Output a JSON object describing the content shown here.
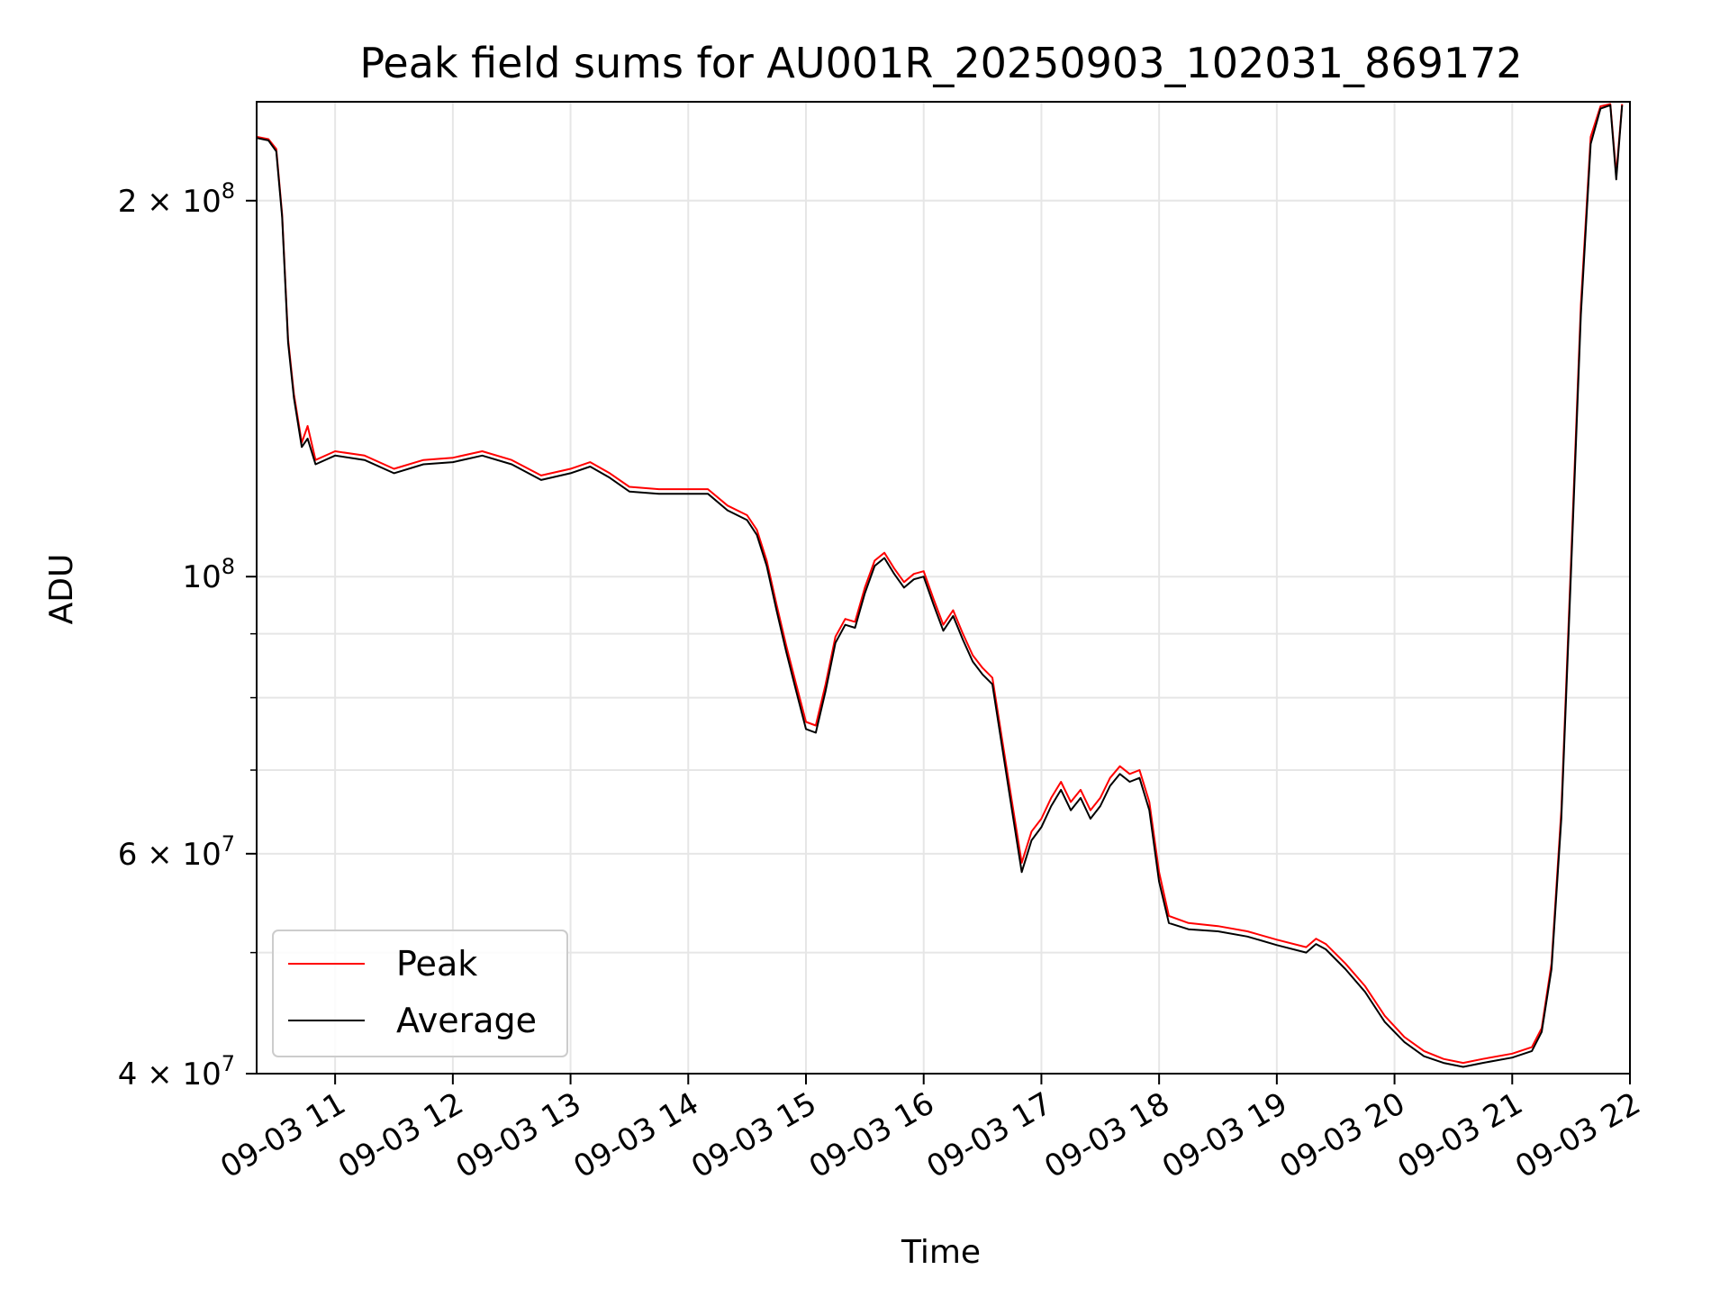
{
  "chart_data": {
    "type": "line",
    "title": "Peak field sums for AU001R_20250903_102031_869172",
    "xlabel": "Time",
    "ylabel": "ADU",
    "y_scale": "log",
    "grid": true,
    "legend_position": "lower-left",
    "xlim": [
      "2025-09-03 10:20",
      "2025-09-03 22:00"
    ],
    "ylim": [
      40000000,
      240000000
    ],
    "x_ticks": [
      {
        "value": "2025-09-03 11:00",
        "label": "09-03 11"
      },
      {
        "value": "2025-09-03 12:00",
        "label": "09-03 12"
      },
      {
        "value": "2025-09-03 13:00",
        "label": "09-03 13"
      },
      {
        "value": "2025-09-03 14:00",
        "label": "09-03 14"
      },
      {
        "value": "2025-09-03 15:00",
        "label": "09-03 15"
      },
      {
        "value": "2025-09-03 16:00",
        "label": "09-03 16"
      },
      {
        "value": "2025-09-03 17:00",
        "label": "09-03 17"
      },
      {
        "value": "2025-09-03 18:00",
        "label": "09-03 18"
      },
      {
        "value": "2025-09-03 19:00",
        "label": "09-03 19"
      },
      {
        "value": "2025-09-03 20:00",
        "label": "09-03 20"
      },
      {
        "value": "2025-09-03 21:00",
        "label": "09-03 21"
      },
      {
        "value": "2025-09-03 22:00",
        "label": "09-03 22"
      }
    ],
    "y_major_ticks": [
      {
        "value": 40000000,
        "mantissa": "4",
        "exponent": "7"
      },
      {
        "value": 60000000,
        "mantissa": "6",
        "exponent": "7"
      },
      {
        "value": 100000000,
        "mantissa": "",
        "exponent": "8"
      },
      {
        "value": 200000000,
        "mantissa": "2",
        "exponent": "8"
      }
    ],
    "y_minor_ticks": [
      50000000,
      70000000,
      80000000,
      90000000
    ],
    "series": [
      {
        "name": "Peak",
        "color": "#ff0000",
        "points": [
          [
            "2025-09-03 10:20",
            225000000
          ],
          [
            "2025-09-03 10:26",
            224000000
          ],
          [
            "2025-09-03 10:30",
            220000000
          ],
          [
            "2025-09-03 10:33",
            195000000
          ],
          [
            "2025-09-03 10:36",
            155000000
          ],
          [
            "2025-09-03 10:39",
            140000000
          ],
          [
            "2025-09-03 10:43",
            128000000
          ],
          [
            "2025-09-03 10:46",
            132000000
          ],
          [
            "2025-09-03 10:50",
            124000000
          ],
          [
            "2025-09-03 11:00",
            126000000
          ],
          [
            "2025-09-03 11:15",
            125000000
          ],
          [
            "2025-09-03 11:30",
            122000000
          ],
          [
            "2025-09-03 11:45",
            124000000
          ],
          [
            "2025-09-03 12:00",
            124500000
          ],
          [
            "2025-09-03 12:15",
            126000000
          ],
          [
            "2025-09-03 12:30",
            124000000
          ],
          [
            "2025-09-03 12:45",
            120500000
          ],
          [
            "2025-09-03 13:00",
            122000000
          ],
          [
            "2025-09-03 13:10",
            123500000
          ],
          [
            "2025-09-03 13:20",
            121000000
          ],
          [
            "2025-09-03 13:30",
            118000000
          ],
          [
            "2025-09-03 13:45",
            117500000
          ],
          [
            "2025-09-03 14:00",
            117500000
          ],
          [
            "2025-09-03 14:10",
            117500000
          ],
          [
            "2025-09-03 14:20",
            114000000
          ],
          [
            "2025-09-03 14:30",
            112000000
          ],
          [
            "2025-09-03 14:35",
            109000000
          ],
          [
            "2025-09-03 14:40",
            103000000
          ],
          [
            "2025-09-03 14:45",
            95000000
          ],
          [
            "2025-09-03 14:50",
            88000000
          ],
          [
            "2025-09-03 14:55",
            82000000
          ],
          [
            "2025-09-03 15:00",
            76500000
          ],
          [
            "2025-09-03 15:05",
            76000000
          ],
          [
            "2025-09-03 15:10",
            82000000
          ],
          [
            "2025-09-03 15:15",
            89500000
          ],
          [
            "2025-09-03 15:20",
            92500000
          ],
          [
            "2025-09-03 15:25",
            92000000
          ],
          [
            "2025-09-03 15:30",
            98000000
          ],
          [
            "2025-09-03 15:35",
            103000000
          ],
          [
            "2025-09-03 15:40",
            104500000
          ],
          [
            "2025-09-03 15:45",
            101500000
          ],
          [
            "2025-09-03 15:50",
            99000000
          ],
          [
            "2025-09-03 15:55",
            100500000
          ],
          [
            "2025-09-03 16:00",
            101000000
          ],
          [
            "2025-09-03 16:05",
            96000000
          ],
          [
            "2025-09-03 16:10",
            91500000
          ],
          [
            "2025-09-03 16:15",
            94000000
          ],
          [
            "2025-09-03 16:20",
            90000000
          ],
          [
            "2025-09-03 16:25",
            86500000
          ],
          [
            "2025-09-03 16:30",
            84500000
          ],
          [
            "2025-09-03 16:35",
            83000000
          ],
          [
            "2025-09-03 16:40",
            74000000
          ],
          [
            "2025-09-03 16:45",
            66000000
          ],
          [
            "2025-09-03 16:50",
            59000000
          ],
          [
            "2025-09-03 16:55",
            62500000
          ],
          [
            "2025-09-03 17:00",
            64000000
          ],
          [
            "2025-09-03 17:05",
            66500000
          ],
          [
            "2025-09-03 17:10",
            68500000
          ],
          [
            "2025-09-03 17:15",
            66000000
          ],
          [
            "2025-09-03 17:20",
            67500000
          ],
          [
            "2025-09-03 17:25",
            65000000
          ],
          [
            "2025-09-03 17:30",
            66500000
          ],
          [
            "2025-09-03 17:35",
            69000000
          ],
          [
            "2025-09-03 17:40",
            70500000
          ],
          [
            "2025-09-03 17:45",
            69500000
          ],
          [
            "2025-09-03 17:50",
            70000000
          ],
          [
            "2025-09-03 17:55",
            66000000
          ],
          [
            "2025-09-03 18:00",
            58000000
          ],
          [
            "2025-09-03 18:05",
            53500000
          ],
          [
            "2025-09-03 18:15",
            52800000
          ],
          [
            "2025-09-03 18:30",
            52500000
          ],
          [
            "2025-09-03 18:45",
            52000000
          ],
          [
            "2025-09-03 19:00",
            51200000
          ],
          [
            "2025-09-03 19:15",
            50500000
          ],
          [
            "2025-09-03 19:20",
            51300000
          ],
          [
            "2025-09-03 19:25",
            50800000
          ],
          [
            "2025-09-03 19:35",
            49000000
          ],
          [
            "2025-09-03 19:45",
            47000000
          ],
          [
            "2025-09-03 19:55",
            44500000
          ],
          [
            "2025-09-03 20:05",
            42800000
          ],
          [
            "2025-09-03 20:15",
            41700000
          ],
          [
            "2025-09-03 20:25",
            41100000
          ],
          [
            "2025-09-03 20:35",
            40800000
          ],
          [
            "2025-09-03 20:45",
            41100000
          ],
          [
            "2025-09-03 21:00",
            41500000
          ],
          [
            "2025-09-03 21:10",
            42000000
          ],
          [
            "2025-09-03 21:15",
            43500000
          ],
          [
            "2025-09-03 21:20",
            49000000
          ],
          [
            "2025-09-03 21:25",
            65000000
          ],
          [
            "2025-09-03 21:30",
            103000000
          ],
          [
            "2025-09-03 21:35",
            165000000
          ],
          [
            "2025-09-03 21:40",
            225000000
          ],
          [
            "2025-09-03 21:45",
            238000000
          ],
          [
            "2025-09-03 21:50",
            239000000
          ],
          [
            "2025-09-03 21:53",
            210000000
          ],
          [
            "2025-09-03 21:56",
            239000000
          ]
        ]
      },
      {
        "name": "Average",
        "color": "#000000",
        "points": [
          [
            "2025-09-03 10:20",
            224500000
          ],
          [
            "2025-09-03 10:26",
            223500000
          ],
          [
            "2025-09-03 10:30",
            219000000
          ],
          [
            "2025-09-03 10:33",
            194000000
          ],
          [
            "2025-09-03 10:36",
            154000000
          ],
          [
            "2025-09-03 10:39",
            139000000
          ],
          [
            "2025-09-03 10:43",
            127000000
          ],
          [
            "2025-09-03 10:46",
            129000000
          ],
          [
            "2025-09-03 10:50",
            123000000
          ],
          [
            "2025-09-03 11:00",
            125000000
          ],
          [
            "2025-09-03 11:15",
            124000000
          ],
          [
            "2025-09-03 11:30",
            121000000
          ],
          [
            "2025-09-03 11:45",
            123000000
          ],
          [
            "2025-09-03 12:00",
            123500000
          ],
          [
            "2025-09-03 12:15",
            125000000
          ],
          [
            "2025-09-03 12:30",
            123000000
          ],
          [
            "2025-09-03 12:45",
            119500000
          ],
          [
            "2025-09-03 13:00",
            121000000
          ],
          [
            "2025-09-03 13:10",
            122500000
          ],
          [
            "2025-09-03 13:20",
            120000000
          ],
          [
            "2025-09-03 13:30",
            117000000
          ],
          [
            "2025-09-03 13:45",
            116500000
          ],
          [
            "2025-09-03 14:00",
            116500000
          ],
          [
            "2025-09-03 14:10",
            116500000
          ],
          [
            "2025-09-03 14:20",
            113000000
          ],
          [
            "2025-09-03 14:30",
            111000000
          ],
          [
            "2025-09-03 14:35",
            108000000
          ],
          [
            "2025-09-03 14:40",
            102000000
          ],
          [
            "2025-09-03 14:45",
            94000000
          ],
          [
            "2025-09-03 14:50",
            87000000
          ],
          [
            "2025-09-03 14:55",
            81000000
          ],
          [
            "2025-09-03 15:00",
            75500000
          ],
          [
            "2025-09-03 15:05",
            75000000
          ],
          [
            "2025-09-03 15:10",
            81000000
          ],
          [
            "2025-09-03 15:15",
            88500000
          ],
          [
            "2025-09-03 15:20",
            91500000
          ],
          [
            "2025-09-03 15:25",
            91000000
          ],
          [
            "2025-09-03 15:30",
            97000000
          ],
          [
            "2025-09-03 15:35",
            102000000
          ],
          [
            "2025-09-03 15:40",
            103500000
          ],
          [
            "2025-09-03 15:45",
            100500000
          ],
          [
            "2025-09-03 15:50",
            98000000
          ],
          [
            "2025-09-03 15:55",
            99500000
          ],
          [
            "2025-09-03 16:00",
            100000000
          ],
          [
            "2025-09-03 16:05",
            95000000
          ],
          [
            "2025-09-03 16:10",
            90500000
          ],
          [
            "2025-09-03 16:15",
            93000000
          ],
          [
            "2025-09-03 16:20",
            89000000
          ],
          [
            "2025-09-03 16:25",
            85500000
          ],
          [
            "2025-09-03 16:30",
            83500000
          ],
          [
            "2025-09-03 16:35",
            82000000
          ],
          [
            "2025-09-03 16:40",
            73000000
          ],
          [
            "2025-09-03 16:45",
            65000000
          ],
          [
            "2025-09-03 16:50",
            58000000
          ],
          [
            "2025-09-03 16:55",
            61500000
          ],
          [
            "2025-09-03 17:00",
            63000000
          ],
          [
            "2025-09-03 17:05",
            65500000
          ],
          [
            "2025-09-03 17:10",
            67500000
          ],
          [
            "2025-09-03 17:15",
            65000000
          ],
          [
            "2025-09-03 17:20",
            66500000
          ],
          [
            "2025-09-03 17:25",
            64000000
          ],
          [
            "2025-09-03 17:30",
            65500000
          ],
          [
            "2025-09-03 17:35",
            68000000
          ],
          [
            "2025-09-03 17:40",
            69500000
          ],
          [
            "2025-09-03 17:45",
            68500000
          ],
          [
            "2025-09-03 17:50",
            69000000
          ],
          [
            "2025-09-03 17:55",
            65000000
          ],
          [
            "2025-09-03 18:00",
            57000000
          ],
          [
            "2025-09-03 18:05",
            52800000
          ],
          [
            "2025-09-03 18:15",
            52200000
          ],
          [
            "2025-09-03 18:30",
            52000000
          ],
          [
            "2025-09-03 18:45",
            51500000
          ],
          [
            "2025-09-03 19:00",
            50700000
          ],
          [
            "2025-09-03 19:15",
            50000000
          ],
          [
            "2025-09-03 19:20",
            50800000
          ],
          [
            "2025-09-03 19:25",
            50300000
          ],
          [
            "2025-09-03 19:35",
            48500000
          ],
          [
            "2025-09-03 19:45",
            46500000
          ],
          [
            "2025-09-03 19:55",
            44000000
          ],
          [
            "2025-09-03 20:05",
            42400000
          ],
          [
            "2025-09-03 20:15",
            41300000
          ],
          [
            "2025-09-03 20:25",
            40800000
          ],
          [
            "2025-09-03 20:35",
            40500000
          ],
          [
            "2025-09-03 20:45",
            40800000
          ],
          [
            "2025-09-03 21:00",
            41200000
          ],
          [
            "2025-09-03 21:10",
            41700000
          ],
          [
            "2025-09-03 21:15",
            43200000
          ],
          [
            "2025-09-03 21:20",
            48500000
          ],
          [
            "2025-09-03 21:25",
            64000000
          ],
          [
            "2025-09-03 21:30",
            101000000
          ],
          [
            "2025-09-03 21:35",
            162000000
          ],
          [
            "2025-09-03 21:40",
            222000000
          ],
          [
            "2025-09-03 21:45",
            237000000
          ],
          [
            "2025-09-03 21:50",
            238500000
          ],
          [
            "2025-09-03 21:53",
            208000000
          ],
          [
            "2025-09-03 21:56",
            238500000
          ]
        ]
      }
    ]
  }
}
